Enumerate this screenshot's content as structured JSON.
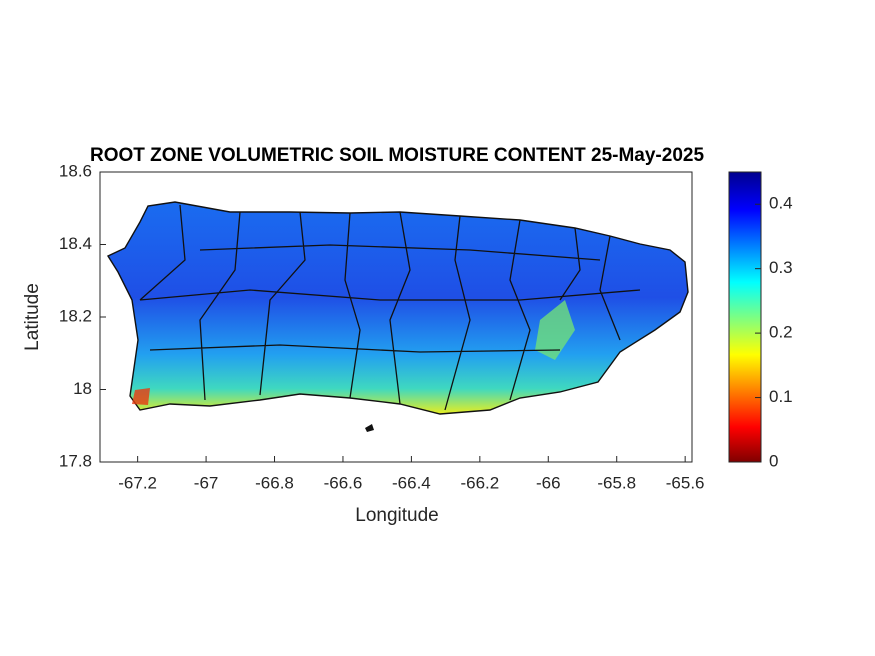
{
  "chart_data": {
    "type": "map",
    "title": "ROOT ZONE VOLUMETRIC SOIL MOISTURE CONTENT 25-May-2025",
    "x_label": "Longitude",
    "y_label": "Latitude",
    "xlim": [
      -67.31,
      -65.58
    ],
    "xticks": [
      -67.2,
      -67,
      -66.8,
      -66.6,
      -66.4,
      -66.2,
      -66,
      -65.8,
      -65.6
    ],
    "ylim": [
      17.8,
      18.6
    ],
    "yticks": [
      17.8,
      18,
      18.2,
      18.4,
      18.6
    ],
    "colorbar": {
      "lim": [
        0,
        0.45
      ],
      "ticks": [
        0,
        0.1,
        0.2,
        0.3,
        0.4
      ]
    }
  }
}
